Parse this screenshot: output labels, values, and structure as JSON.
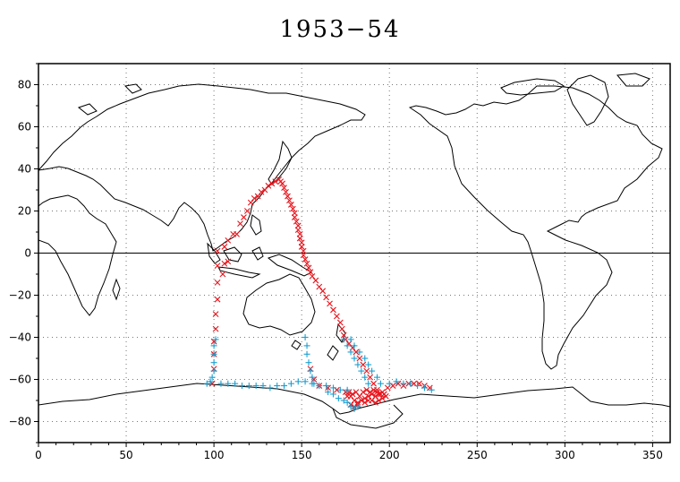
{
  "title": "1953−54",
  "chart_data": {
    "type": "scatter",
    "title": "1953−54",
    "xlim": [
      0,
      360
    ],
    "ylim": [
      -90,
      90
    ],
    "grid": true,
    "xticks": [
      0,
      50,
      100,
      150,
      200,
      250,
      300,
      350
    ],
    "yticks": [
      80,
      60,
      40,
      20,
      0,
      -20,
      -40,
      -60,
      -80
    ],
    "series": [
      {
        "marker": "x",
        "color": "#e8141c",
        "points": [
          [
            99,
            -62
          ],
          [
            100,
            -55
          ],
          [
            100,
            -48
          ],
          [
            100,
            -42
          ],
          [
            101,
            -36
          ],
          [
            101,
            -29
          ],
          [
            102,
            -22
          ],
          [
            102,
            -14
          ],
          [
            102,
            -6
          ],
          [
            102,
            1
          ],
          [
            105,
            -10
          ],
          [
            106,
            -5
          ],
          [
            108,
            -4
          ],
          [
            106,
            3
          ],
          [
            108,
            6
          ],
          [
            111,
            9
          ],
          [
            113,
            9
          ],
          [
            115,
            14
          ],
          [
            117,
            17
          ],
          [
            119,
            20
          ],
          [
            121,
            24
          ],
          [
            123,
            26
          ],
          [
            125,
            27
          ],
          [
            127,
            29
          ],
          [
            129,
            30
          ],
          [
            131,
            32
          ],
          [
            133,
            33
          ],
          [
            135,
            34
          ],
          [
            137,
            35
          ],
          [
            138,
            34
          ],
          [
            139,
            33
          ],
          [
            140,
            31
          ],
          [
            141,
            29
          ],
          [
            142,
            27
          ],
          [
            143,
            25
          ],
          [
            144,
            23
          ],
          [
            145,
            21
          ],
          [
            146,
            19
          ],
          [
            146,
            17
          ],
          [
            147,
            15
          ],
          [
            148,
            13
          ],
          [
            148,
            11
          ],
          [
            149,
            9
          ],
          [
            149,
            7
          ],
          [
            150,
            5
          ],
          [
            150,
            3
          ],
          [
            151,
            1
          ],
          [
            151,
            -1
          ],
          [
            152,
            -3
          ],
          [
            153,
            -5
          ],
          [
            154,
            -7
          ],
          [
            155,
            -9
          ],
          [
            156,
            -11
          ],
          [
            158,
            -13
          ],
          [
            160,
            -16
          ],
          [
            162,
            -18
          ],
          [
            164,
            -21
          ],
          [
            166,
            -24
          ],
          [
            168,
            -27
          ],
          [
            170,
            -30
          ],
          [
            172,
            -33
          ],
          [
            173,
            -36
          ],
          [
            174,
            -39
          ],
          [
            175,
            -41
          ],
          [
            177,
            -43
          ],
          [
            179,
            -45
          ],
          [
            181,
            -47
          ],
          [
            183,
            -50
          ],
          [
            185,
            -53
          ],
          [
            187,
            -56
          ],
          [
            189,
            -59
          ],
          [
            191,
            -62
          ],
          [
            193,
            -65
          ],
          [
            195,
            -67
          ],
          [
            155,
            -55
          ],
          [
            157,
            -60
          ],
          [
            160,
            -63
          ],
          [
            165,
            -64
          ],
          [
            170,
            -65
          ],
          [
            175,
            -66
          ],
          [
            178,
            -68
          ],
          [
            180,
            -70
          ],
          [
            182,
            -71
          ],
          [
            184,
            -70
          ],
          [
            186,
            -69
          ],
          [
            188,
            -68
          ],
          [
            190,
            -67
          ],
          [
            192,
            -68
          ],
          [
            194,
            -67
          ],
          [
            196,
            -66
          ],
          [
            197,
            -67
          ],
          [
            198,
            -68
          ],
          [
            196,
            -69
          ],
          [
            194,
            -70
          ],
          [
            185,
            -66
          ],
          [
            187,
            -65
          ],
          [
            189,
            -66
          ],
          [
            191,
            -65
          ],
          [
            193,
            -66
          ],
          [
            183,
            -68
          ],
          [
            181,
            -66
          ],
          [
            179,
            -67
          ],
          [
            177,
            -66
          ],
          [
            176,
            -68
          ],
          [
            186,
            -71
          ],
          [
            188,
            -70
          ],
          [
            190,
            -70
          ],
          [
            192,
            -71
          ],
          [
            178,
            -72
          ],
          [
            180,
            -73
          ],
          [
            182,
            -72
          ],
          [
            199,
            -64
          ],
          [
            202,
            -63
          ],
          [
            205,
            -62
          ],
          [
            208,
            -63
          ],
          [
            211,
            -62
          ],
          [
            214,
            -62
          ],
          [
            217,
            -62
          ],
          [
            220,
            -63
          ],
          [
            223,
            -64
          ]
        ]
      },
      {
        "marker": "+",
        "color": "#1a9fd0",
        "points": [
          [
            96,
            -62
          ],
          [
            98,
            -61
          ],
          [
            99,
            -59
          ],
          [
            100,
            -56
          ],
          [
            100,
            -52
          ],
          [
            100,
            -48
          ],
          [
            100,
            -44
          ],
          [
            101,
            -41
          ],
          [
            104,
            -62
          ],
          [
            108,
            -62
          ],
          [
            112,
            -62
          ],
          [
            116,
            -63
          ],
          [
            120,
            -63
          ],
          [
            124,
            -63
          ],
          [
            128,
            -63
          ],
          [
            132,
            -64
          ],
          [
            136,
            -63
          ],
          [
            140,
            -63
          ],
          [
            144,
            -62
          ],
          [
            148,
            -61
          ],
          [
            152,
            -61
          ],
          [
            156,
            -62
          ],
          [
            160,
            -63
          ],
          [
            164,
            -63
          ],
          [
            168,
            -64
          ],
          [
            172,
            -65
          ],
          [
            176,
            -65
          ],
          [
            152,
            -40
          ],
          [
            153,
            -44
          ],
          [
            153,
            -48
          ],
          [
            154,
            -52
          ],
          [
            155,
            -56
          ],
          [
            156,
            -59
          ],
          [
            157,
            -62
          ],
          [
            174,
            -41
          ],
          [
            176,
            -44
          ],
          [
            178,
            -47
          ],
          [
            180,
            -50
          ],
          [
            182,
            -53
          ],
          [
            184,
            -56
          ],
          [
            186,
            -59
          ],
          [
            188,
            -62
          ],
          [
            178,
            -41
          ],
          [
            180,
            -44
          ],
          [
            183,
            -47
          ],
          [
            186,
            -50
          ],
          [
            188,
            -53
          ],
          [
            190,
            -56
          ],
          [
            193,
            -59
          ],
          [
            195,
            -62
          ],
          [
            165,
            -66
          ],
          [
            168,
            -67
          ],
          [
            171,
            -69
          ],
          [
            174,
            -70
          ],
          [
            176,
            -71
          ],
          [
            178,
            -73
          ],
          [
            180,
            -74
          ],
          [
            182,
            -73
          ],
          [
            200,
            -62
          ],
          [
            204,
            -61
          ],
          [
            208,
            -62
          ],
          [
            212,
            -62
          ],
          [
            216,
            -63
          ],
          [
            220,
            -64
          ],
          [
            224,
            -65
          ]
        ]
      }
    ]
  }
}
